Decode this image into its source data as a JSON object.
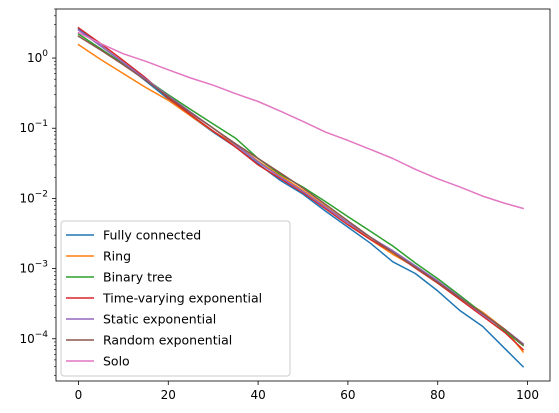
{
  "chart_data": {
    "type": "line",
    "title": "",
    "xlabel": "",
    "ylabel": "",
    "xlim": [
      -5,
      105
    ],
    "ylim": [
      2.5e-05,
      5
    ],
    "yscale": "log",
    "grid": false,
    "legend_position": "lower-left",
    "x_ticks": [
      0,
      20,
      40,
      60,
      80,
      100
    ],
    "x_tick_labels": [
      "0",
      "20",
      "40",
      "60",
      "80",
      "100"
    ],
    "y_ticks": [
      0.0001,
      0.001,
      0.01,
      0.1,
      1
    ],
    "y_tick_labels": [
      {
        "base": "10",
        "exp": "−4"
      },
      {
        "base": "10",
        "exp": "−3"
      },
      {
        "base": "10",
        "exp": "−2"
      },
      {
        "base": "10",
        "exp": "−1"
      },
      {
        "base": "10",
        "exp": "0"
      }
    ],
    "series": [
      {
        "name": "Fully connected",
        "color": "#1f77b4",
        "x": [
          0,
          5,
          10,
          15,
          20,
          25,
          30,
          35,
          40,
          45,
          50,
          55,
          60,
          65,
          70,
          75,
          80,
          85,
          90,
          95,
          99
        ],
        "y": [
          2.6,
          1.5,
          0.85,
          0.47,
          0.26,
          0.15,
          0.088,
          0.054,
          0.031,
          0.018,
          0.0115,
          0.0066,
          0.0039,
          0.0023,
          0.00125,
          0.00085,
          0.00048,
          0.00025,
          0.00015,
          7.2e-05,
          4e-05
        ]
      },
      {
        "name": "Ring",
        "color": "#ff7f0e",
        "x": [
          0,
          5,
          10,
          15,
          20,
          25,
          30,
          35,
          40,
          45,
          50,
          55,
          60,
          65,
          70,
          75,
          80,
          85,
          90,
          95,
          99
        ],
        "y": [
          1.55,
          0.95,
          0.6,
          0.38,
          0.25,
          0.15,
          0.09,
          0.058,
          0.034,
          0.021,
          0.013,
          0.0077,
          0.0045,
          0.0026,
          0.0016,
          0.00105,
          0.00062,
          0.00038,
          0.00024,
          0.000135,
          6.5e-05
        ]
      },
      {
        "name": "Binary tree",
        "color": "#2ca02c",
        "x": [
          0,
          5,
          10,
          15,
          20,
          25,
          30,
          35,
          40,
          45,
          50,
          55,
          60,
          65,
          70,
          75,
          80,
          85,
          90,
          95,
          99
        ],
        "y": [
          2.2,
          1.35,
          0.82,
          0.5,
          0.3,
          0.185,
          0.115,
          0.072,
          0.037,
          0.022,
          0.0145,
          0.009,
          0.0055,
          0.0034,
          0.0021,
          0.0012,
          0.00072,
          0.00041,
          0.00023,
          0.000128,
          8e-05
        ]
      },
      {
        "name": "Time-varying exponential",
        "color": "#d62728",
        "x": [
          0,
          5,
          10,
          15,
          20,
          25,
          30,
          35,
          40,
          45,
          50,
          55,
          60,
          65,
          70,
          75,
          80,
          85,
          90,
          95,
          99
        ],
        "y": [
          2.7,
          1.6,
          0.92,
          0.52,
          0.27,
          0.155,
          0.091,
          0.054,
          0.03,
          0.019,
          0.012,
          0.0071,
          0.0042,
          0.0026,
          0.0017,
          0.00102,
          0.00062,
          0.00036,
          0.00021,
          0.000122,
          7e-05
        ]
      },
      {
        "name": "Static exponential",
        "color": "#9467bd",
        "x": [
          0,
          5,
          10,
          15,
          20,
          25,
          30,
          35,
          40,
          45,
          50,
          55,
          60,
          65,
          70,
          75,
          80,
          85,
          90,
          95,
          99
        ],
        "y": [
          2.5,
          1.48,
          0.86,
          0.5,
          0.29,
          0.17,
          0.1,
          0.058,
          0.033,
          0.02,
          0.0125,
          0.0075,
          0.0045,
          0.0028,
          0.0018,
          0.0011,
          0.00067,
          0.00039,
          0.00022,
          0.000135,
          8.5e-05
        ]
      },
      {
        "name": "Random exponential",
        "color": "#8c564b",
        "x": [
          0,
          5,
          10,
          15,
          20,
          25,
          30,
          35,
          40,
          45,
          50,
          55,
          60,
          65,
          70,
          75,
          80,
          85,
          90,
          95,
          99
        ],
        "y": [
          2.05,
          1.3,
          0.8,
          0.48,
          0.28,
          0.165,
          0.1,
          0.06,
          0.037,
          0.023,
          0.014,
          0.0082,
          0.0048,
          0.0028,
          0.0017,
          0.00105,
          0.00064,
          0.00038,
          0.00023,
          0.000135,
          8.2e-05
        ]
      },
      {
        "name": "Solo",
        "color": "#e377c2",
        "x": [
          0,
          5,
          10,
          15,
          20,
          25,
          30,
          35,
          40,
          45,
          50,
          55,
          60,
          65,
          70,
          75,
          80,
          85,
          90,
          95,
          99
        ],
        "y": [
          2.3,
          1.6,
          1.15,
          0.9,
          0.68,
          0.52,
          0.41,
          0.31,
          0.24,
          0.175,
          0.125,
          0.088,
          0.067,
          0.05,
          0.037,
          0.026,
          0.019,
          0.0145,
          0.0108,
          0.0085,
          0.0072
        ]
      }
    ]
  }
}
